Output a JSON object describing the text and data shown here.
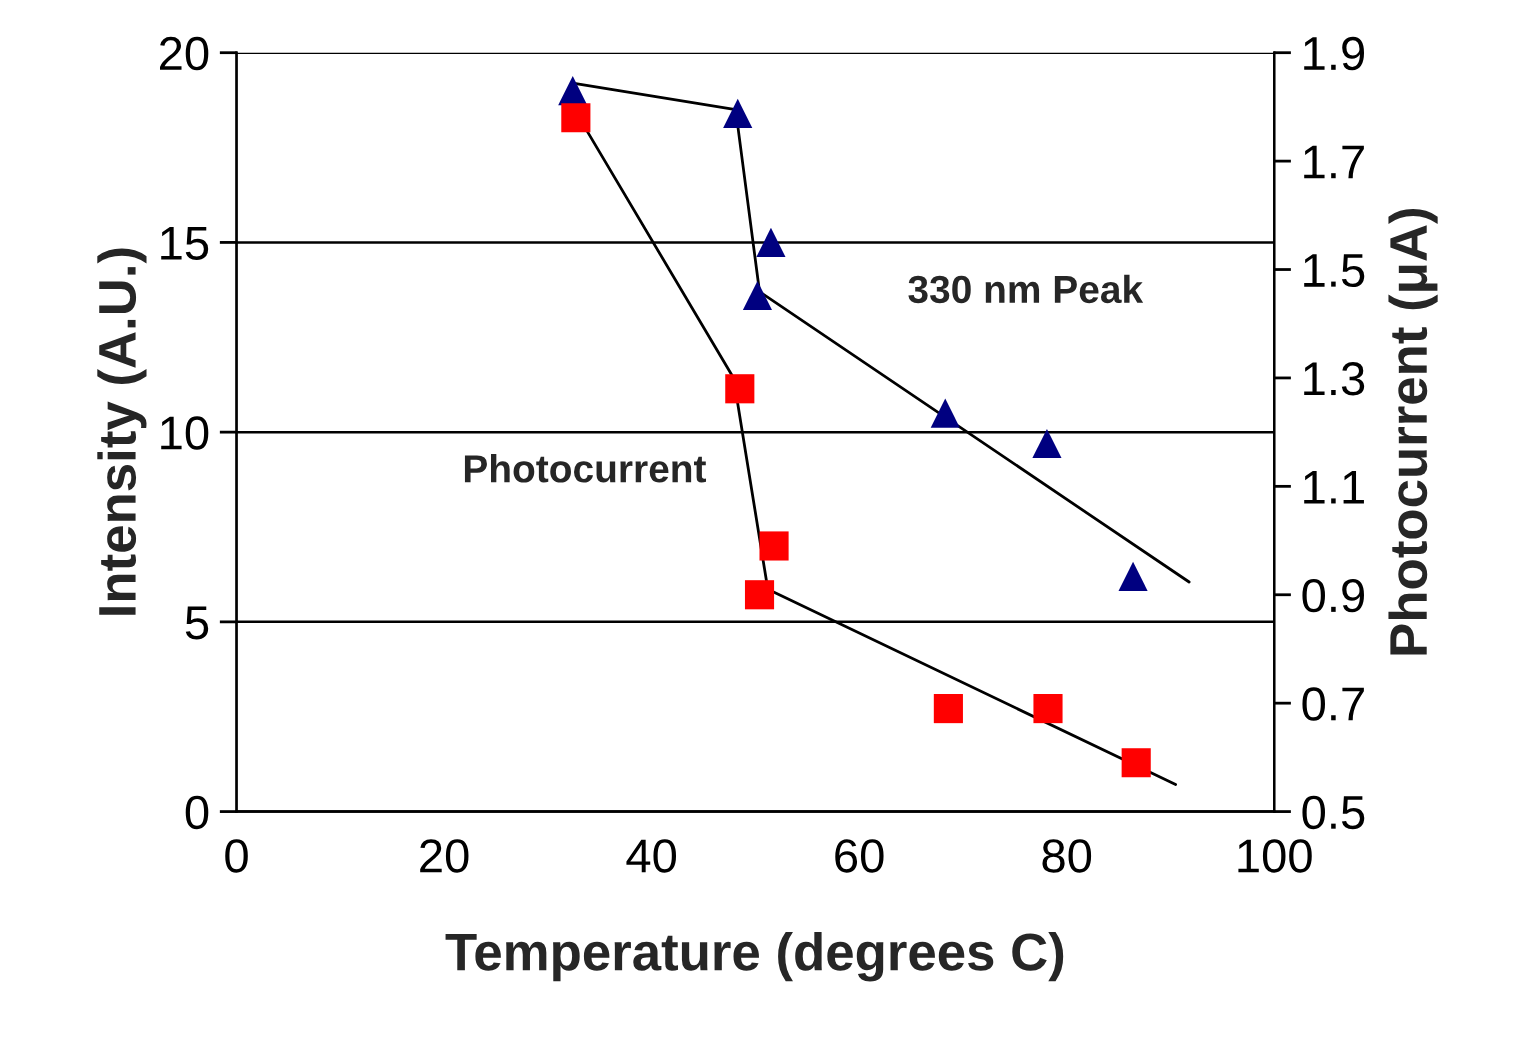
{
  "chart_data": {
    "type": "scatter",
    "xlabel": "Temperature (degrees C)",
    "ylabel": "Intensity (A.U.)",
    "y2label": "Photocurrent (μA)",
    "xlim": [
      0,
      100
    ],
    "xticks": [
      0,
      20,
      40,
      60,
      80,
      100
    ],
    "ylim": [
      0,
      20
    ],
    "yticks": [
      0,
      5,
      10,
      15,
      20
    ],
    "y2lim": [
      0.5,
      1.9
    ],
    "y2ticks": [
      0.5,
      0.7,
      0.9,
      1.1,
      1.3,
      1.5,
      1.7,
      1.9
    ],
    "grid": "y",
    "series": [
      {
        "name": "330 nm Peak",
        "color": "#000080",
        "marker": "triangle",
        "x": [
          32.4,
          48.3,
          51.5,
          50.2,
          68.3,
          78.1,
          86.4
        ],
        "values": [
          19.0,
          18.4,
          15.0,
          13.6,
          10.5,
          9.7,
          6.2
        ]
      },
      {
        "name": "Photocurrent",
        "color": "#ff0000",
        "marker": "square",
        "axis": "y2",
        "x": [
          32.7,
          48.5,
          51.8,
          50.4,
          68.6,
          78.2,
          86.7
        ],
        "values": [
          1.78,
          1.28,
          0.99,
          0.9,
          0.69,
          0.69,
          0.59
        ]
      },
      {
        "type": "line",
        "color": "#000000",
        "marker": "none",
        "x": [
          32.4,
          48.1,
          50.4,
          91.8
        ],
        "values": [
          19.2,
          18.5,
          13.7,
          6.05
        ]
      },
      {
        "type": "line",
        "color": "#000000",
        "marker": "none",
        "axis": "y2",
        "x": [
          32.4,
          47.9,
          51.2,
          90.5
        ],
        "values": [
          1.8,
          1.3,
          0.91,
          0.55
        ]
      }
    ]
  }
}
